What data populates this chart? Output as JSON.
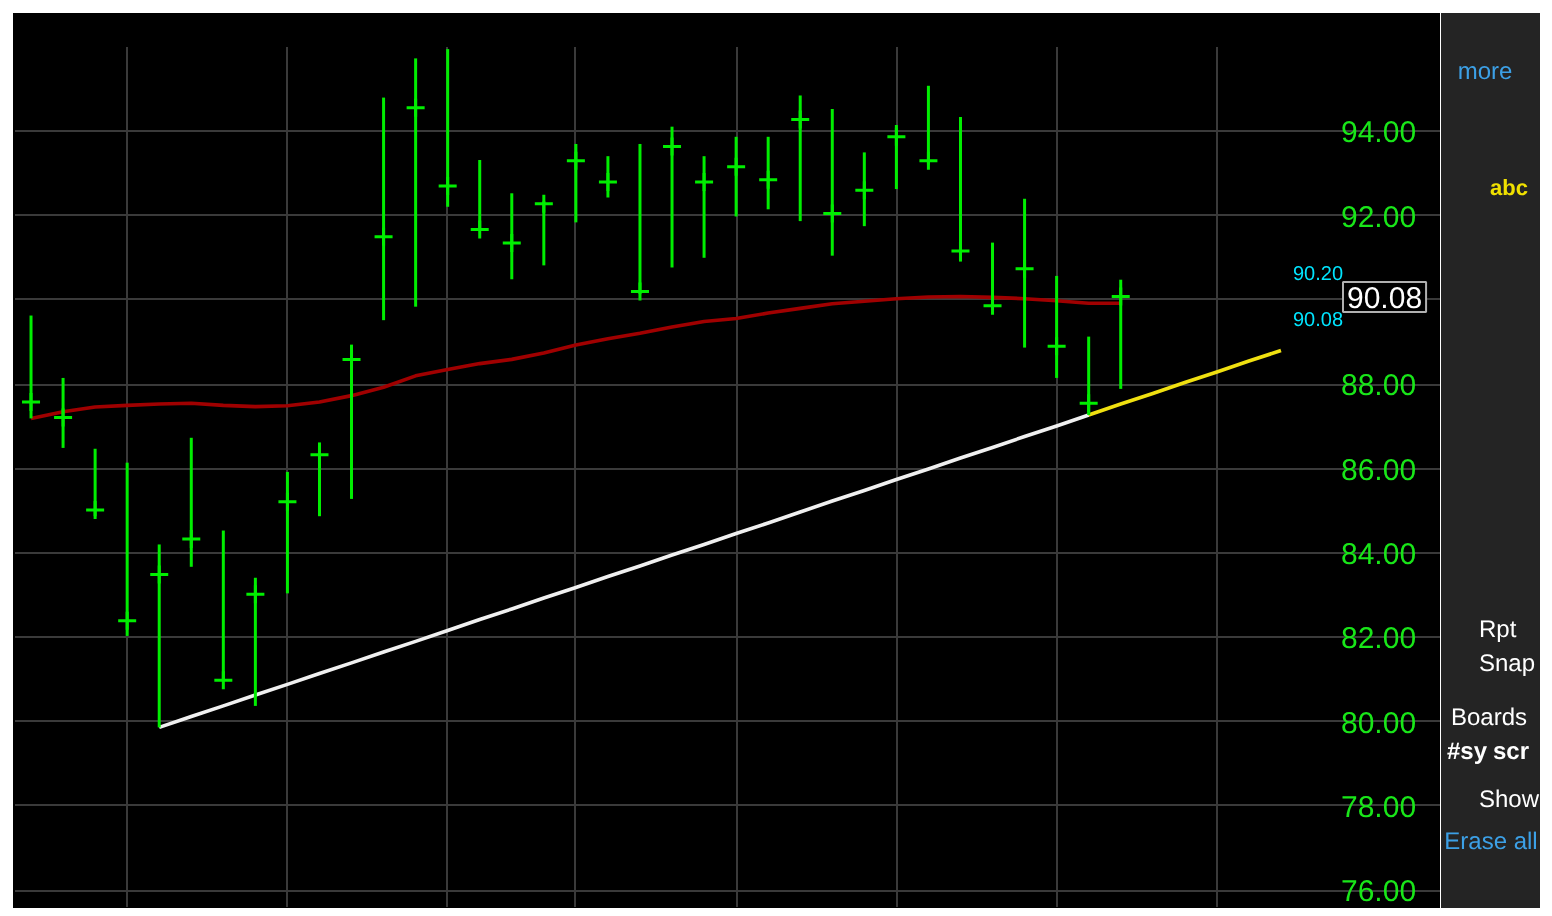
{
  "chart_data": {
    "type": "scatter",
    "categories": [
      null,
      null,
      null,
      null,
      null,
      null,
      null,
      null,
      null,
      null,
      null,
      null,
      null,
      null,
      null,
      null,
      null,
      null,
      null,
      null,
      null,
      null,
      null,
      null,
      null,
      null,
      null,
      null,
      null,
      null,
      null,
      null,
      null,
      null,
      null,
      null,
      null,
      null,
      null,
      null
    ],
    "series": [
      {
        "color": "#00ee00",
        "marker": "cross",
        "values": [
          87.58,
          87.21,
          85.02,
          82.39,
          83.49,
          84.33,
          80.98,
          83.02,
          85.21,
          86.33,
          88.59,
          91.5,
          94.56,
          92.7,
          91.67,
          91.35,
          92.28,
          93.3,
          92.8,
          90.2,
          93.64,
          92.8,
          93.16,
          92.85,
          94.28,
          92.05,
          92.6,
          93.87,
          93.3,
          91.16,
          89.86,
          90.74,
          88.9,
          87.55,
          90.08,
          null,
          null,
          null,
          null,
          null
        ],
        "errors": [
          [
            87.19,
            89.63
          ],
          [
            86.49,
            88.15
          ],
          [
            84.87,
            86.47
          ],
          [
            82.03,
            86.14
          ],
          [
            79.86,
            84.2
          ],
          [
            83.67,
            86.73
          ],
          [
            80.98,
            84.53
          ],
          [
            80.37,
            83.41
          ],
          [
            83.04,
            85.92
          ],
          [
            84.87,
            86.62
          ],
          [
            85.28,
            88.94
          ],
          [
            89.52,
            94.8
          ],
          [
            89.84,
            95.73
          ],
          [
            92.21,
            95.95
          ],
          [
            91.67,
            93.32
          ],
          [
            90.49,
            92.53
          ],
          [
            90.82,
            92.34
          ],
          [
            91.84,
            93.7
          ],
          [
            92.43,
            93.41
          ],
          [
            90.14,
            93.7
          ],
          [
            90.77,
            94.11
          ],
          [
            91.0,
            93.41
          ],
          [
            91.98,
            93.87
          ],
          [
            92.15,
            93.87
          ],
          [
            91.87,
            94.85
          ],
          [
            91.05,
            94.53
          ],
          [
            91.75,
            93.5
          ],
          [
            92.63,
            94.15
          ],
          [
            93.21,
            95.08
          ],
          [
            90.91,
            94.34
          ],
          [
            89.81,
            91.36
          ],
          [
            88.87,
            92.4
          ],
          [
            88.15,
            90.57
          ],
          [
            87.27,
            89.13
          ],
          [
            87.89,
            90.48
          ],
          null,
          null,
          null,
          null,
          null
        ]
      },
      {
        "type": "line",
        "color": "#a00000",
        "values": [
          87.19,
          87.35,
          87.46,
          87.5,
          87.53,
          87.55,
          87.5,
          87.47,
          87.49,
          87.58,
          87.73,
          87.93,
          88.2,
          88.35,
          88.49,
          88.59,
          88.74,
          88.93,
          89.08,
          89.21,
          89.36,
          89.49,
          89.56,
          89.69,
          89.8,
          89.91,
          89.97,
          90.03,
          90.07,
          90.08,
          90.06,
          90.03,
          89.98,
          89.92,
          89.92,
          null,
          null,
          null,
          null,
          null
        ]
      },
      {
        "type": "line",
        "color": "#f0f0f0",
        "values": [
          null,
          null,
          null,
          null,
          79.86,
          80.12,
          80.37,
          80.63,
          80.88,
          81.14,
          81.39,
          81.65,
          81.9,
          82.16,
          82.42,
          82.67,
          82.93,
          83.18,
          83.44,
          83.69,
          83.95,
          84.2,
          84.46,
          84.71,
          84.97,
          85.23,
          85.48,
          85.74,
          85.99,
          86.25,
          86.5,
          86.76,
          87.01,
          87.27,
          null,
          null,
          null,
          null,
          null,
          null
        ]
      },
      {
        "type": "line",
        "color": "#f0e010",
        "values": [
          null,
          null,
          null,
          null,
          null,
          null,
          null,
          null,
          null,
          null,
          null,
          null,
          null,
          null,
          null,
          null,
          null,
          null,
          null,
          null,
          null,
          null,
          null,
          null,
          null,
          null,
          null,
          null,
          null,
          null,
          null,
          null,
          null,
          87.27,
          87.53,
          87.78,
          88.04,
          88.29,
          88.55,
          88.8
        ]
      }
    ],
    "ylim": [
      75.6,
      96
    ],
    "yticks": [
      {
        "value": 76,
        "label": "76.00"
      },
      {
        "value": 78,
        "label": "78.00"
      },
      {
        "value": 80,
        "label": "80.00"
      },
      {
        "value": 82,
        "label": "82.00"
      },
      {
        "value": 84,
        "label": "84.00"
      },
      {
        "value": 86,
        "label": "86.00"
      },
      {
        "value": 88,
        "label": "88.00"
      },
      {
        "value": 90,
        "label": null
      },
      {
        "value": 92,
        "label": "92.00"
      },
      {
        "value": 94,
        "label": "94.00"
      }
    ],
    "grid": true,
    "annotations": [
      "90.20",
      "90.08",
      "90.08",
      "more",
      "abc",
      "Rpt",
      "Snap",
      "Boards",
      "#sy",
      "scr",
      "Show",
      "Erase all"
    ]
  }
}
